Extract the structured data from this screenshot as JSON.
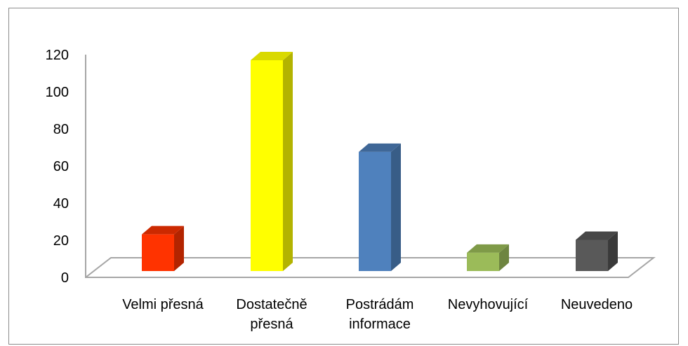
{
  "chart_data": {
    "type": "bar",
    "style": "3d-column",
    "categories": [
      [
        "Velmi přesná"
      ],
      [
        "Dostatečně",
        "přesná"
      ],
      [
        "Postrádám",
        "informace"
      ],
      [
        "Nevyhovující"
      ],
      [
        "Neuvedeno"
      ]
    ],
    "values": [
      20,
      115,
      65,
      10,
      17
    ],
    "colors": [
      "#ff3300",
      "#ffff00",
      "#4f81bd",
      "#9bbb59",
      "#595959"
    ],
    "side_colors": [
      "#b32400",
      "#b3b300",
      "#385d87",
      "#6e8540",
      "#3a3a3a"
    ],
    "top_colors": [
      "#cc2900",
      "#d9d900",
      "#3f6797",
      "#7f9a48",
      "#474747"
    ],
    "yticks": [
      "0",
      "20",
      "40",
      "60",
      "80",
      "100",
      "120"
    ],
    "ylim": [
      0,
      120
    ],
    "grid": false,
    "legend": "none"
  }
}
